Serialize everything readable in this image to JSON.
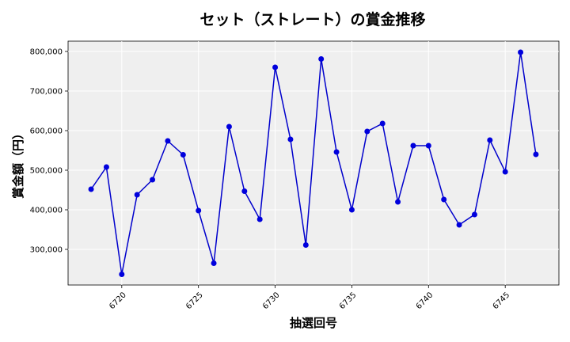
{
  "chart_data": {
    "type": "line",
    "title": "セット（ストレート）の賞金推移",
    "xlabel": "抽選回号",
    "ylabel": "賞金額（円）",
    "xlim": [
      6716.5,
      6748.5
    ],
    "ylim": [
      210000,
      826000
    ],
    "xticks": [
      6720,
      6725,
      6730,
      6735,
      6740,
      6745
    ],
    "yticks": [
      300000,
      400000,
      500000,
      600000,
      700000,
      800000
    ],
    "ytick_labels": [
      "300,000",
      "400,000",
      "500,000",
      "600,000",
      "700,000",
      "800,000"
    ],
    "grid": true,
    "colors": {
      "line": "#0000cc",
      "marker": "#0000dd",
      "plot_bg": "#efefef"
    },
    "series": [
      {
        "x": [
          6718,
          6719,
          6720,
          6721,
          6722,
          6723,
          6724,
          6725,
          6726,
          6727,
          6728,
          6729,
          6730,
          6731,
          6732,
          6733,
          6734,
          6735,
          6736,
          6737,
          6738,
          6739,
          6740,
          6741,
          6742,
          6743,
          6744,
          6745,
          6746,
          6747
        ],
        "values": [
          452000,
          508000,
          237000,
          438000,
          476000,
          574000,
          539000,
          398000,
          265000,
          610000,
          447000,
          376000,
          760000,
          578000,
          311000,
          781000,
          546000,
          400000,
          598000,
          618000,
          420000,
          562000,
          562000,
          426000,
          362000,
          388000,
          576000,
          496000,
          798000,
          540000
        ]
      }
    ]
  }
}
